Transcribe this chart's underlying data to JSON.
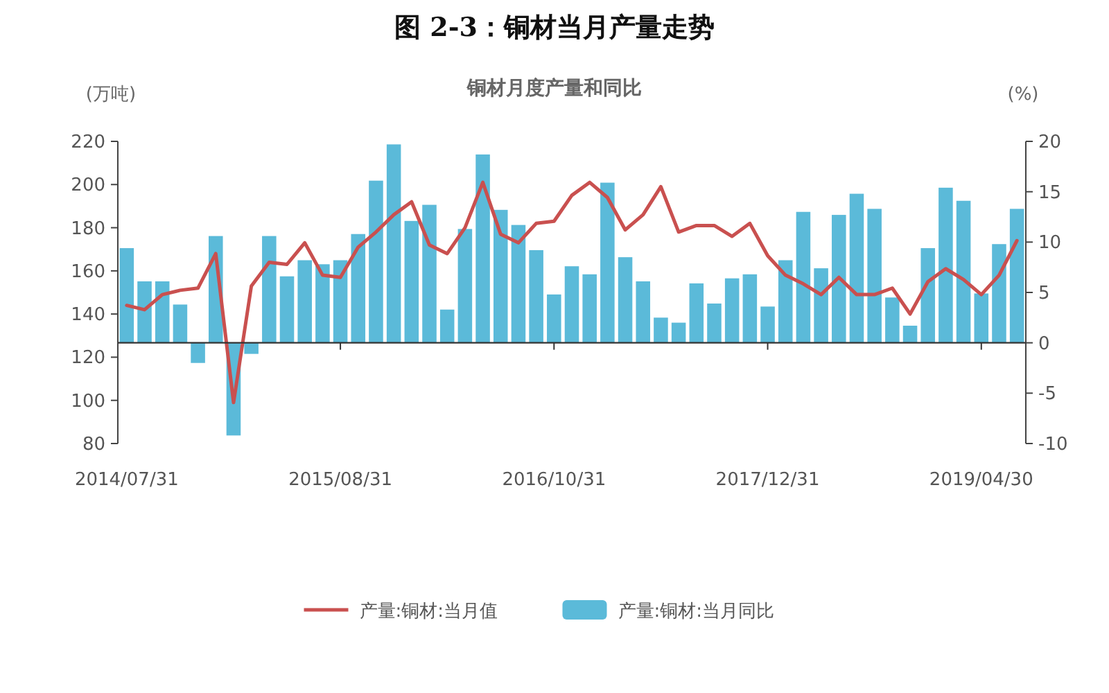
{
  "chart_data": {
    "type": "bar",
    "title": "图 2-3：铜材当月产量走势",
    "subtitle": "铜材月度产量和同比",
    "ylabel": "(万吨)",
    "y2label": "(%)",
    "categories": [
      "2014/07/31",
      null,
      null,
      null,
      null,
      null,
      null,
      null,
      null,
      null,
      null,
      null,
      "2015/08/31",
      null,
      null,
      null,
      null,
      null,
      null,
      null,
      null,
      null,
      null,
      null,
      "2016/10/31",
      null,
      null,
      null,
      null,
      null,
      null,
      null,
      null,
      null,
      null,
      null,
      "2017/12/31",
      null,
      null,
      null,
      null,
      null,
      null,
      null,
      null,
      null,
      null,
      null,
      "2019/04/30",
      null,
      null
    ],
    "series": [
      {
        "name": "产量:铜材:当月值",
        "type": "line",
        "color": "#c9504f",
        "values": [
          144,
          142,
          149,
          151,
          152,
          168,
          99,
          153,
          164,
          163,
          173,
          158,
          157,
          171,
          178,
          186,
          192,
          172,
          168,
          180,
          201,
          177,
          173,
          182,
          183,
          195,
          201,
          194,
          179,
          186,
          199,
          178,
          181,
          181,
          176,
          182,
          167,
          158,
          154,
          149,
          157,
          149,
          149,
          152,
          140,
          155,
          161,
          156,
          149,
          158,
          174
        ]
      },
      {
        "name": "产量:铜材:当月同比",
        "color": "#5bbad9",
        "axis": "y2",
        "values": [
          9.4,
          6.1,
          6.1,
          3.8,
          -2.0,
          10.6,
          -9.2,
          -1.1,
          10.6,
          6.6,
          8.2,
          7.8,
          8.2,
          10.8,
          16.1,
          19.7,
          12.1,
          13.7,
          3.3,
          11.3,
          18.7,
          13.2,
          11.7,
          9.2,
          4.8,
          7.6,
          6.8,
          15.9,
          8.5,
          6.1,
          2.5,
          2.0,
          5.9,
          3.9,
          6.4,
          6.8,
          3.6,
          8.2,
          13.0,
          7.4,
          12.7,
          14.8,
          13.3,
          4.5,
          1.7,
          9.4,
          15.4,
          14.1,
          4.9,
          9.8,
          13.3
        ]
      }
    ],
    "ylim": [
      80,
      220
    ],
    "yticks": [
      80,
      100,
      120,
      140,
      160,
      180,
      200,
      220
    ],
    "y2lim": [
      -10,
      20
    ],
    "y2ticks": [
      -10,
      -5,
      0,
      5,
      10,
      15,
      20
    ],
    "legend": "bottom"
  }
}
